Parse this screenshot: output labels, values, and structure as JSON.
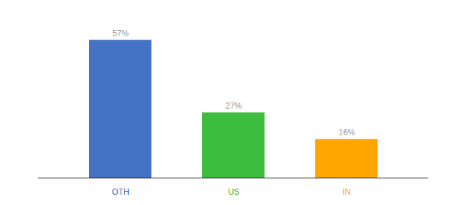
{
  "chart_data": {
    "type": "bar",
    "categories": [
      "OTH",
      "US",
      "IN"
    ],
    "values": [
      57,
      27,
      16
    ],
    "value_labels": [
      "57%",
      "27%",
      "16%"
    ],
    "colors": [
      "#4472C4",
      "#3DBD3D",
      "#FFA500"
    ],
    "ylim": [
      0,
      65
    ],
    "data_labels": true,
    "tick_labels": "x",
    "grid": false
  }
}
